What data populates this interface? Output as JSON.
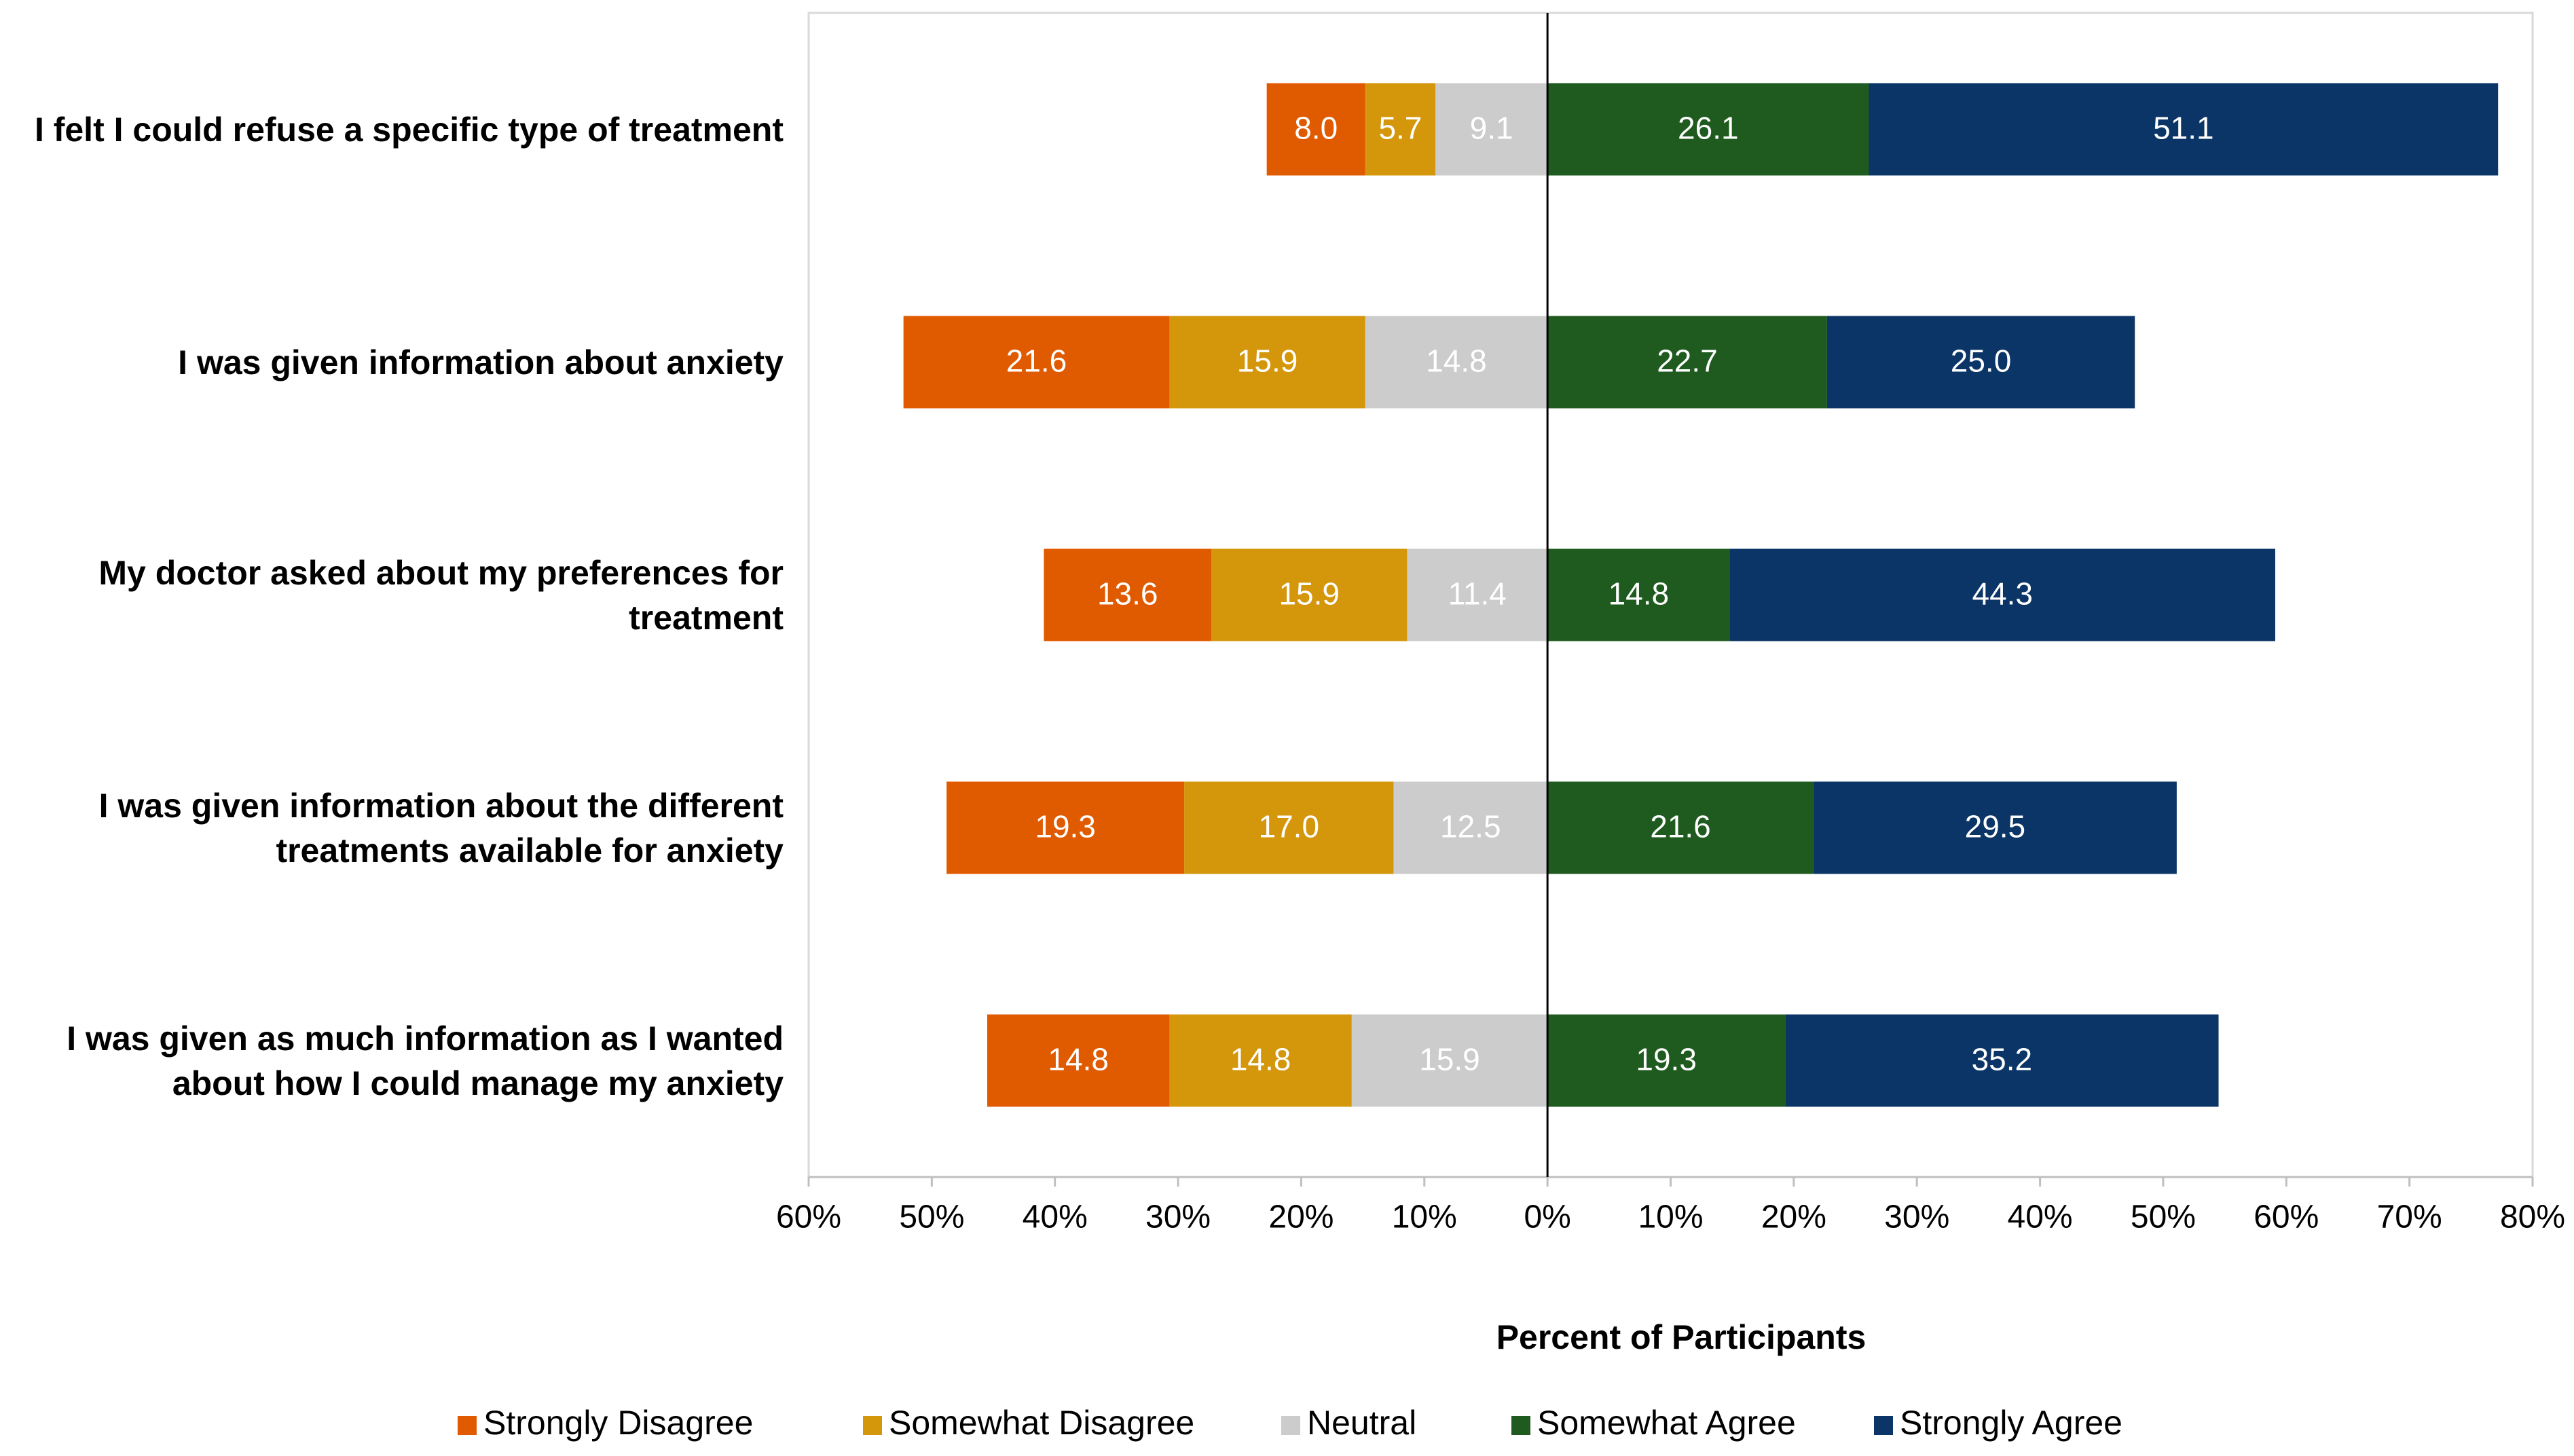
{
  "chart_data": {
    "type": "diverging-stacked-bar",
    "orientation": "horizontal",
    "categories": [
      "I felt I could refuse a specific type of treatment",
      "I was given information about anxiety",
      "My doctor asked about my preferences for treatment",
      "I was given information about the different treatments available for anxiety",
      "I was given as much information as I wanted about how I could manage my anxiety"
    ],
    "series": [
      {
        "name": "Strongly Disagree",
        "color": "#e05a00",
        "values": [
          -8.0,
          -21.6,
          -13.6,
          -19.3,
          -14.8
        ],
        "value_labels": [
          "8.0",
          "21.6",
          "13.6",
          "19.3",
          "14.8"
        ]
      },
      {
        "name": "Somewhat Disagree",
        "color": "#d4960a",
        "values": [
          -5.7,
          -15.9,
          -15.9,
          -17.0,
          -14.8
        ],
        "value_labels": [
          "5.7",
          "15.9",
          "15.9",
          "17.0",
          "14.8"
        ]
      },
      {
        "name": "Neutral",
        "color": "#cccccc",
        "values": [
          -9.1,
          -14.8,
          -11.4,
          -12.5,
          -15.9
        ],
        "value_labels": [
          "9.1",
          "14.8",
          "11.4",
          "12.5",
          "15.9"
        ]
      },
      {
        "name": "Somewhat Agree",
        "color": "#1f5a1e",
        "values": [
          26.1,
          22.7,
          14.8,
          21.6,
          19.3
        ],
        "value_labels": [
          "26.1",
          "22.7",
          "14.8",
          "21.6",
          "19.3"
        ]
      },
      {
        "name": "Strongly Agree",
        "color": "#0b3566",
        "values": [
          51.1,
          25.0,
          44.3,
          29.5,
          35.2
        ],
        "value_labels": [
          "51.1",
          "25.0",
          "44.3",
          "29.5",
          "35.2"
        ]
      }
    ],
    "x_label": "Percent of Participants",
    "xlim": [
      -60,
      80
    ],
    "xticks": [
      {
        "value": -60,
        "label": "60%"
      },
      {
        "value": -50,
        "label": "50%"
      },
      {
        "value": -40,
        "label": "40%"
      },
      {
        "value": -30,
        "label": "30%"
      },
      {
        "value": -20,
        "label": "20%"
      },
      {
        "value": -10,
        "label": "10%"
      },
      {
        "value": 0,
        "label": "0%"
      },
      {
        "value": 10,
        "label": "10%"
      },
      {
        "value": 20,
        "label": "20%"
      },
      {
        "value": 30,
        "label": "30%"
      },
      {
        "value": 40,
        "label": "40%"
      },
      {
        "value": 50,
        "label": "50%"
      },
      {
        "value": 60,
        "label": "60%"
      },
      {
        "value": 70,
        "label": "70%"
      },
      {
        "value": 80,
        "label": "80%"
      }
    ],
    "grid": false,
    "legend": "bottom"
  }
}
